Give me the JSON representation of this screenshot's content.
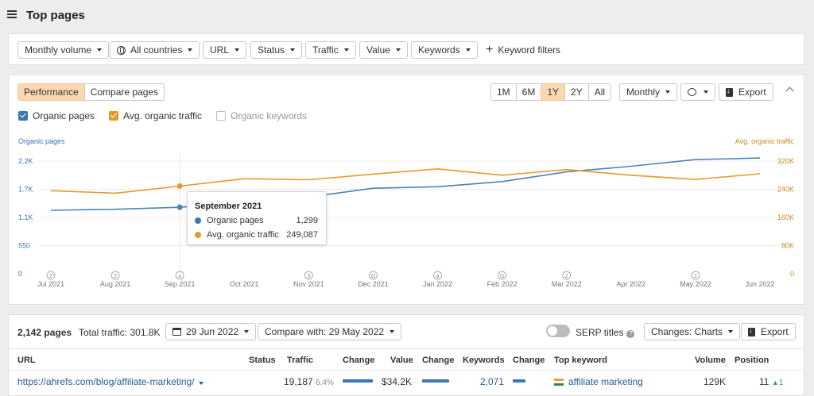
{
  "header": {
    "title": "Top pages"
  },
  "filters": [
    {
      "label": "Monthly volume",
      "icon": null,
      "caret": true
    },
    {
      "label": "All countries",
      "icon": "globe-icon",
      "caret": true
    },
    {
      "label": "URL",
      "icon": null,
      "caret": true
    },
    {
      "label": "Status",
      "icon": null,
      "caret": true
    },
    {
      "label": "Traffic",
      "icon": null,
      "caret": true
    },
    {
      "label": "Value",
      "icon": null,
      "caret": true
    },
    {
      "label": "Keywords",
      "icon": null,
      "caret": true
    }
  ],
  "keyword_filters_label": "Keyword filters",
  "chart_panel": {
    "view_tabs": [
      "Performance",
      "Compare pages"
    ],
    "active_view": "Performance",
    "ranges": [
      "1M",
      "6M",
      "1Y",
      "2Y",
      "All"
    ],
    "active_range": "1Y",
    "interval": "Monthly",
    "export_label": "Export",
    "metrics": [
      {
        "label": "Organic pages",
        "checked": true,
        "color": "#3a77b5"
      },
      {
        "label": "Avg. organic traffic",
        "checked": true,
        "color": "#e39b2b"
      },
      {
        "label": "Organic keywords",
        "checked": false,
        "color": "#bbbbbb"
      }
    ]
  },
  "chart_data": {
    "type": "line",
    "x": [
      "Jul 2021",
      "Aug 2021",
      "Sep 2021",
      "Oct 2021",
      "Nov 2021",
      "Dec 2021",
      "Jan 2022",
      "Feb 2022",
      "Mar 2022",
      "Apr 2022",
      "May 2022",
      "Jun 2022"
    ],
    "markers": [
      "2",
      "2",
      "a",
      "",
      "3",
      "G",
      "a",
      "G",
      "2",
      "",
      "2",
      ""
    ],
    "y_left": {
      "label": "Organic pages",
      "ticks": [
        "0",
        "550",
        "1.1K",
        "1.7K",
        "2.2K"
      ],
      "range": [
        0,
        2200
      ]
    },
    "y_right": {
      "label": "Avg. organic traffic",
      "ticks": [
        "0",
        "80K",
        "160K",
        "240K",
        "320K"
      ],
      "range": [
        0,
        320000
      ]
    },
    "series": [
      {
        "name": "Organic pages",
        "axis": "left",
        "color": "#4a84b8",
        "values": [
          1240,
          1260,
          1299,
          1390,
          1500,
          1670,
          1700,
          1800,
          1990,
          2100,
          2230,
          2260
        ]
      },
      {
        "name": "Avg. organic traffic",
        "axis": "right",
        "color": "#e39b2b",
        "values": [
          236000,
          229000,
          249087,
          270000,
          267000,
          283000,
          298000,
          280000,
          296000,
          280000,
          268000,
          284000
        ]
      }
    ],
    "grid": true,
    "tooltip": {
      "title": "September 2021",
      "rows": [
        {
          "label": "Organic pages",
          "value": "1,299",
          "color": "#3a77b5"
        },
        {
          "label": "Avg. organic traffic",
          "value": "249,087",
          "color": "#e39b2b"
        }
      ]
    }
  },
  "table_panel": {
    "pages_count": "2,142 pages",
    "total_traffic": "Total traffic: 301.8K",
    "date": "29 Jun 2022",
    "compare": "Compare with: 29 May 2022",
    "serp_titles": "SERP titles",
    "changes": "Changes: Charts",
    "export_label": "Export",
    "columns": [
      "URL",
      "Status",
      "Traffic",
      "Change",
      "Value",
      "Change",
      "Keywords",
      "Change",
      "Top keyword",
      "Volume",
      "Position"
    ],
    "rows": [
      {
        "url": "https://ahrefs.com/blog/affiliate-marketing/",
        "status": "",
        "traffic": "19,187",
        "traffic_share": "6.4%",
        "value": "$34.2K",
        "keywords": "2,071",
        "top_keyword": "affiliate marketing",
        "volume": "129K",
        "position": "11",
        "position_change": "1"
      }
    ]
  }
}
